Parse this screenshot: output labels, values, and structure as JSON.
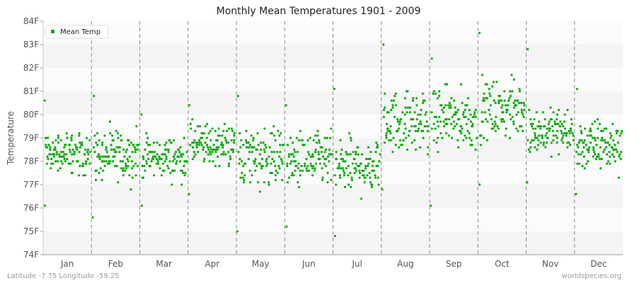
{
  "chart_data": {
    "type": "scatter",
    "title": "Monthly Mean Temperatures 1901 - 2009",
    "ylabel": "Temperature",
    "xlabel": "",
    "categories": [
      "Jan",
      "Feb",
      "Mar",
      "Apr",
      "May",
      "Jun",
      "Jul",
      "Aug",
      "Sep",
      "Oct",
      "Nov",
      "Dec"
    ],
    "y_ticks": [
      "74F",
      "75F",
      "76F",
      "77F",
      "78F",
      "79F",
      "80F",
      "81F",
      "82F",
      "83F",
      "84F"
    ],
    "ylim": [
      74,
      84
    ],
    "grid": "horizontal bands",
    "legend_position": "top-left",
    "series": [
      {
        "name": "Mean Temp",
        "color": "#00aa00",
        "monthly_summary": [
          {
            "month": "Jan",
            "min": 76.1,
            "max": 80.6,
            "typical_low": 77.5,
            "typical_high": 79.2
          },
          {
            "month": "Feb",
            "min": 75.6,
            "max": 80.8,
            "typical_low": 77.2,
            "typical_high": 79.3
          },
          {
            "month": "Mar",
            "min": 76.1,
            "max": 80.0,
            "typical_low": 77.3,
            "typical_high": 79.0
          },
          {
            "month": "Apr",
            "min": 76.6,
            "max": 80.4,
            "typical_low": 77.8,
            "typical_high": 79.6
          },
          {
            "month": "May",
            "min": 75.0,
            "max": 80.8,
            "typical_low": 77.0,
            "typical_high": 79.5
          },
          {
            "month": "Jun",
            "min": 75.2,
            "max": 80.4,
            "typical_low": 76.8,
            "typical_high": 79.2
          },
          {
            "month": "Jul",
            "min": 74.8,
            "max": 81.1,
            "typical_low": 76.6,
            "typical_high": 79.0
          },
          {
            "month": "Aug",
            "min": 76.8,
            "max": 83.0,
            "typical_low": 78.4,
            "typical_high": 81.0
          },
          {
            "month": "Sep",
            "min": 76.1,
            "max": 82.4,
            "typical_low": 78.6,
            "typical_high": 81.0
          },
          {
            "month": "Oct",
            "min": 77.0,
            "max": 83.5,
            "typical_low": 79.0,
            "typical_high": 81.4
          },
          {
            "month": "Nov",
            "min": 77.1,
            "max": 82.8,
            "typical_low": 78.4,
            "typical_high": 80.2
          },
          {
            "month": "Dec",
            "min": 76.6,
            "max": 81.1,
            "typical_low": 77.6,
            "typical_high": 79.8
          }
        ]
      }
    ]
  },
  "footer": {
    "location": "Latitude -7.75 Longitude -59.25",
    "site": "worldspecies.org"
  }
}
